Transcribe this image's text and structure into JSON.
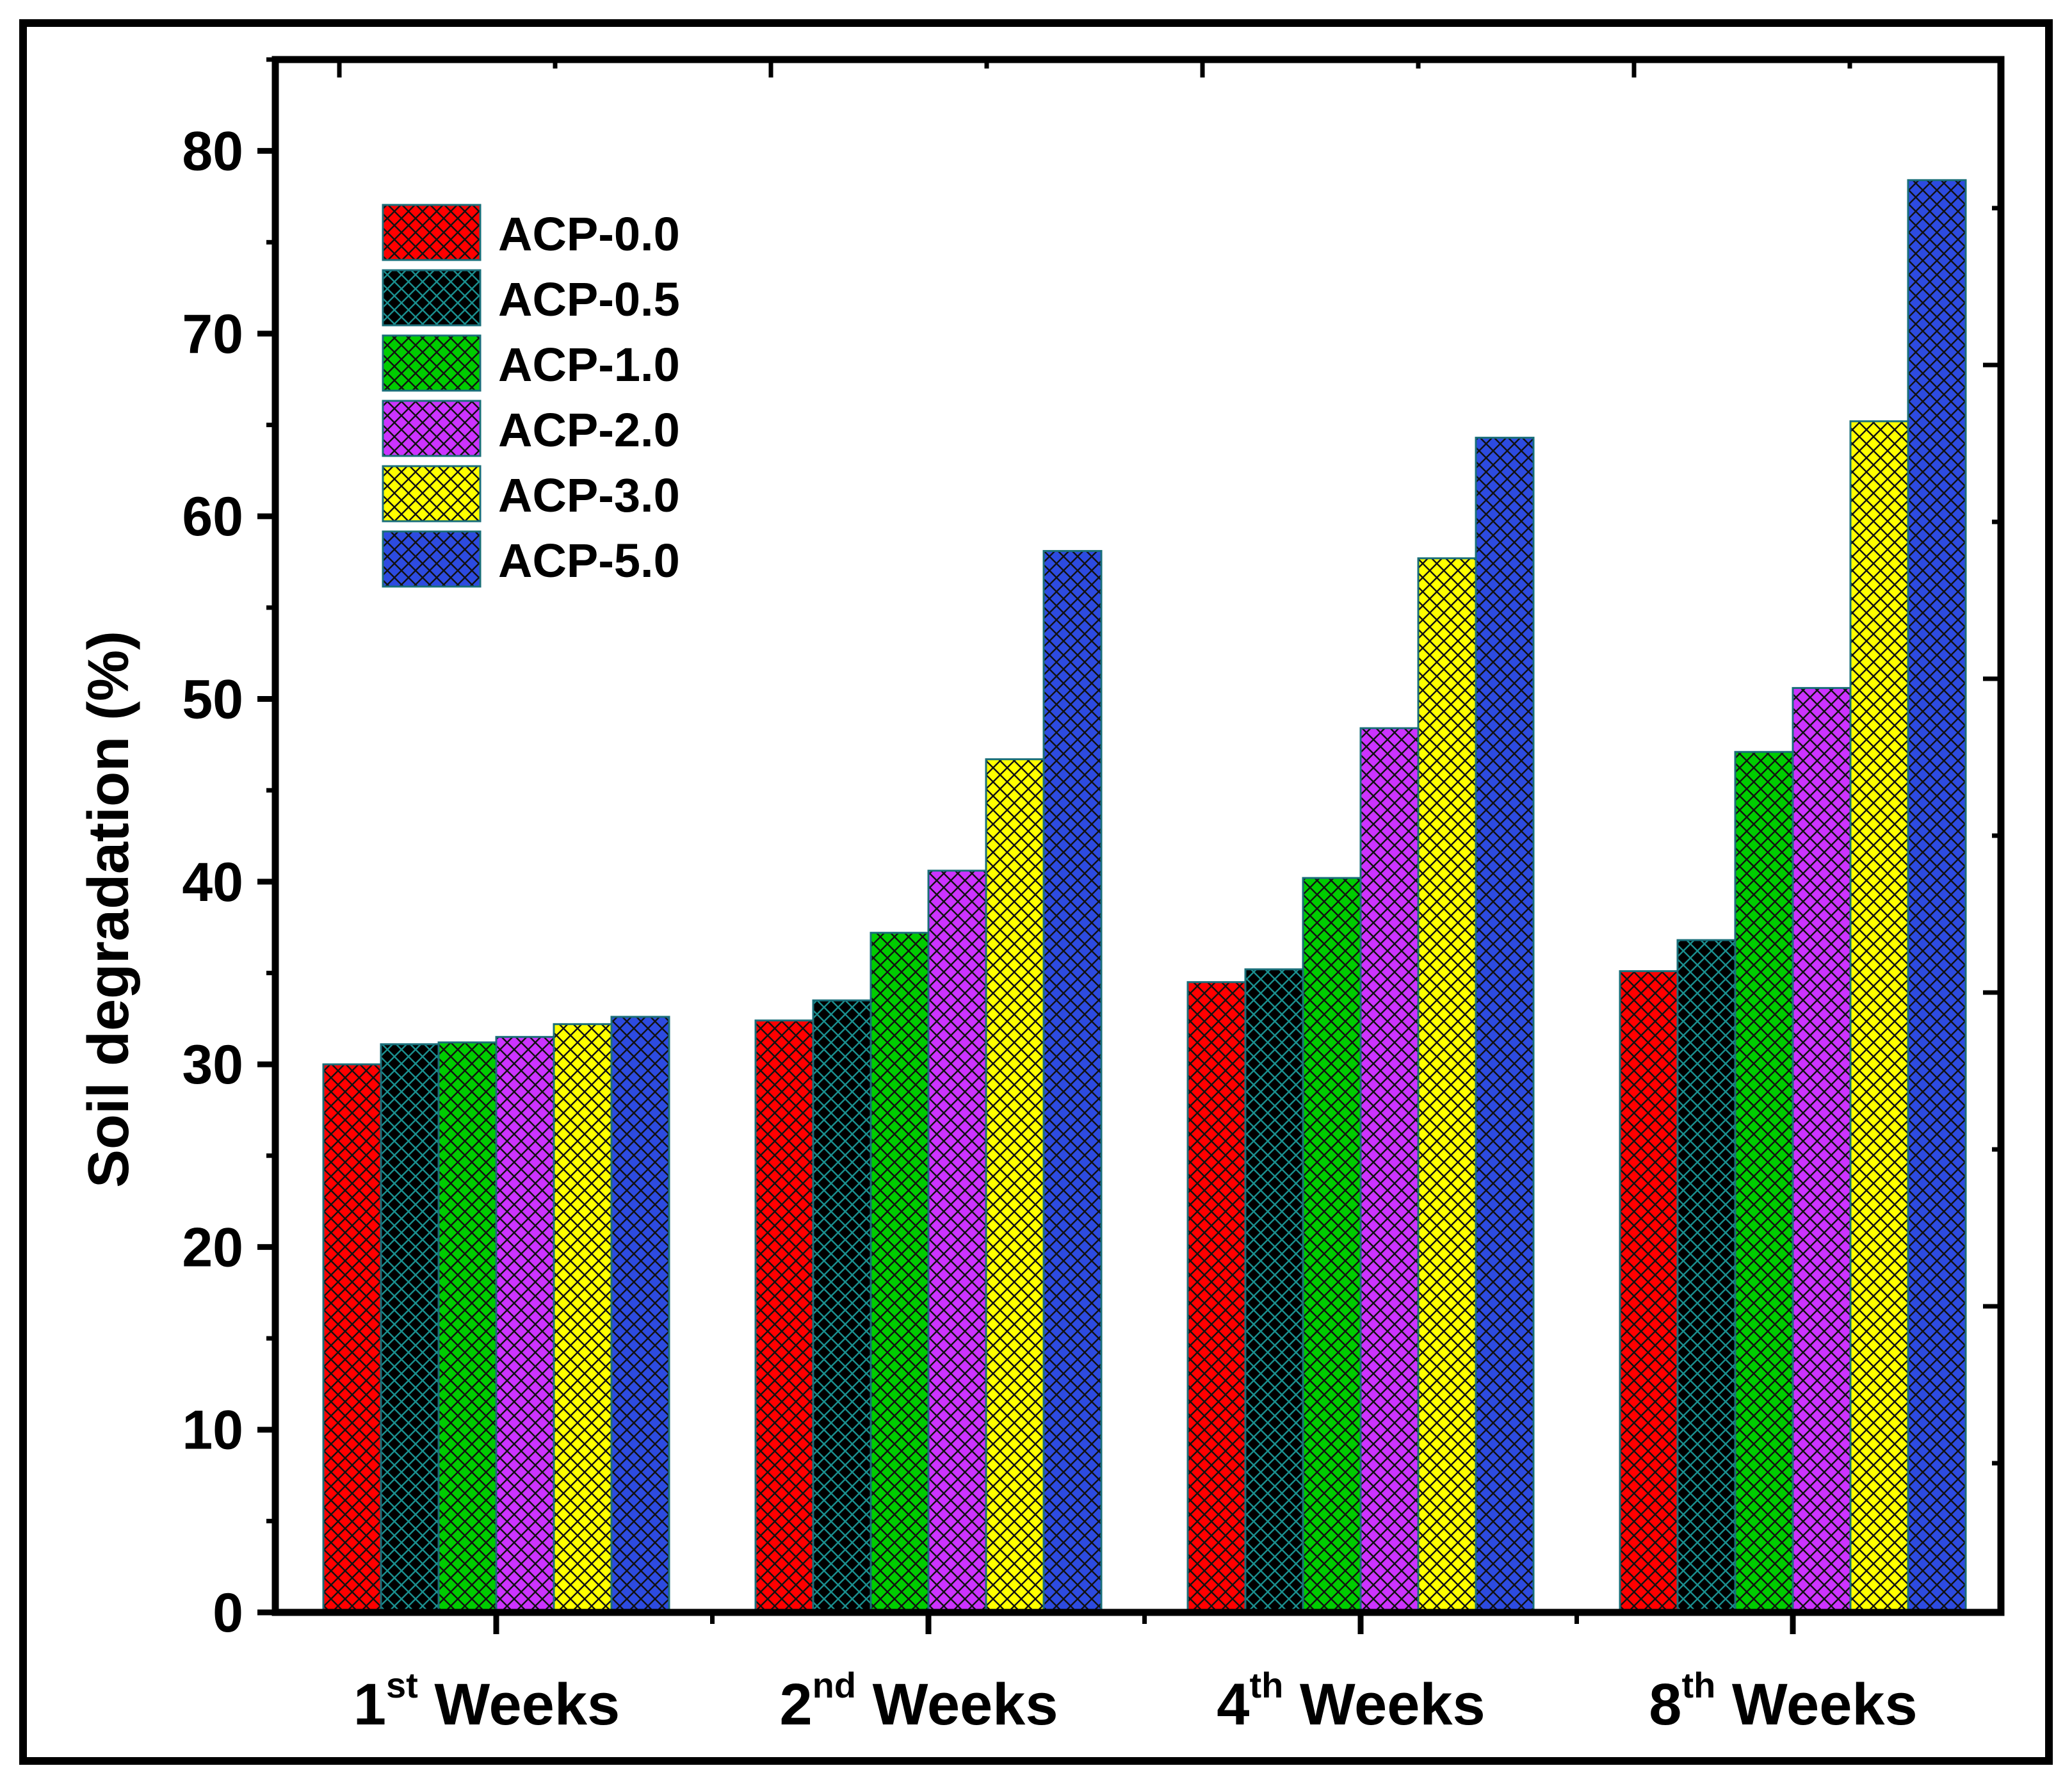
{
  "chart_data": {
    "type": "bar",
    "title": "",
    "xlabel": "",
    "ylabel": "Soil degradation (%)",
    "ylim": [
      0,
      85
    ],
    "yticks": [
      0,
      10,
      20,
      30,
      40,
      50,
      60,
      70,
      80
    ],
    "categories": [
      {
        "num": "1",
        "sup": "st",
        "word": " Weeks"
      },
      {
        "num": "2",
        "sup": "nd",
        "word": " Weeks"
      },
      {
        "num": "4",
        "sup": "th",
        "word": " Weeks"
      },
      {
        "num": "8",
        "sup": "th",
        "word": " Weeks"
      }
    ],
    "legend_position": "top-left",
    "series": [
      {
        "name": "ACP-0.0",
        "color": "#ff0000",
        "values": [
          30.0,
          32.4,
          34.5,
          35.1
        ]
      },
      {
        "name": "ACP-0.5",
        "color": "#000000",
        "values": [
          31.1,
          33.5,
          35.2,
          36.8
        ]
      },
      {
        "name": "ACP-1.0",
        "color": "#00cc00",
        "values": [
          31.2,
          37.2,
          40.2,
          47.1
        ]
      },
      {
        "name": "ACP-2.0",
        "color": "#cc33ff",
        "values": [
          31.5,
          40.6,
          48.4,
          50.6
        ]
      },
      {
        "name": "ACP-3.0",
        "color": "#ffff00",
        "values": [
          32.2,
          46.7,
          57.7,
          65.2
        ]
      },
      {
        "name": "ACP-5.0",
        "color": "#2d4be0",
        "values": [
          32.6,
          58.1,
          64.3,
          78.4
        ]
      }
    ]
  }
}
